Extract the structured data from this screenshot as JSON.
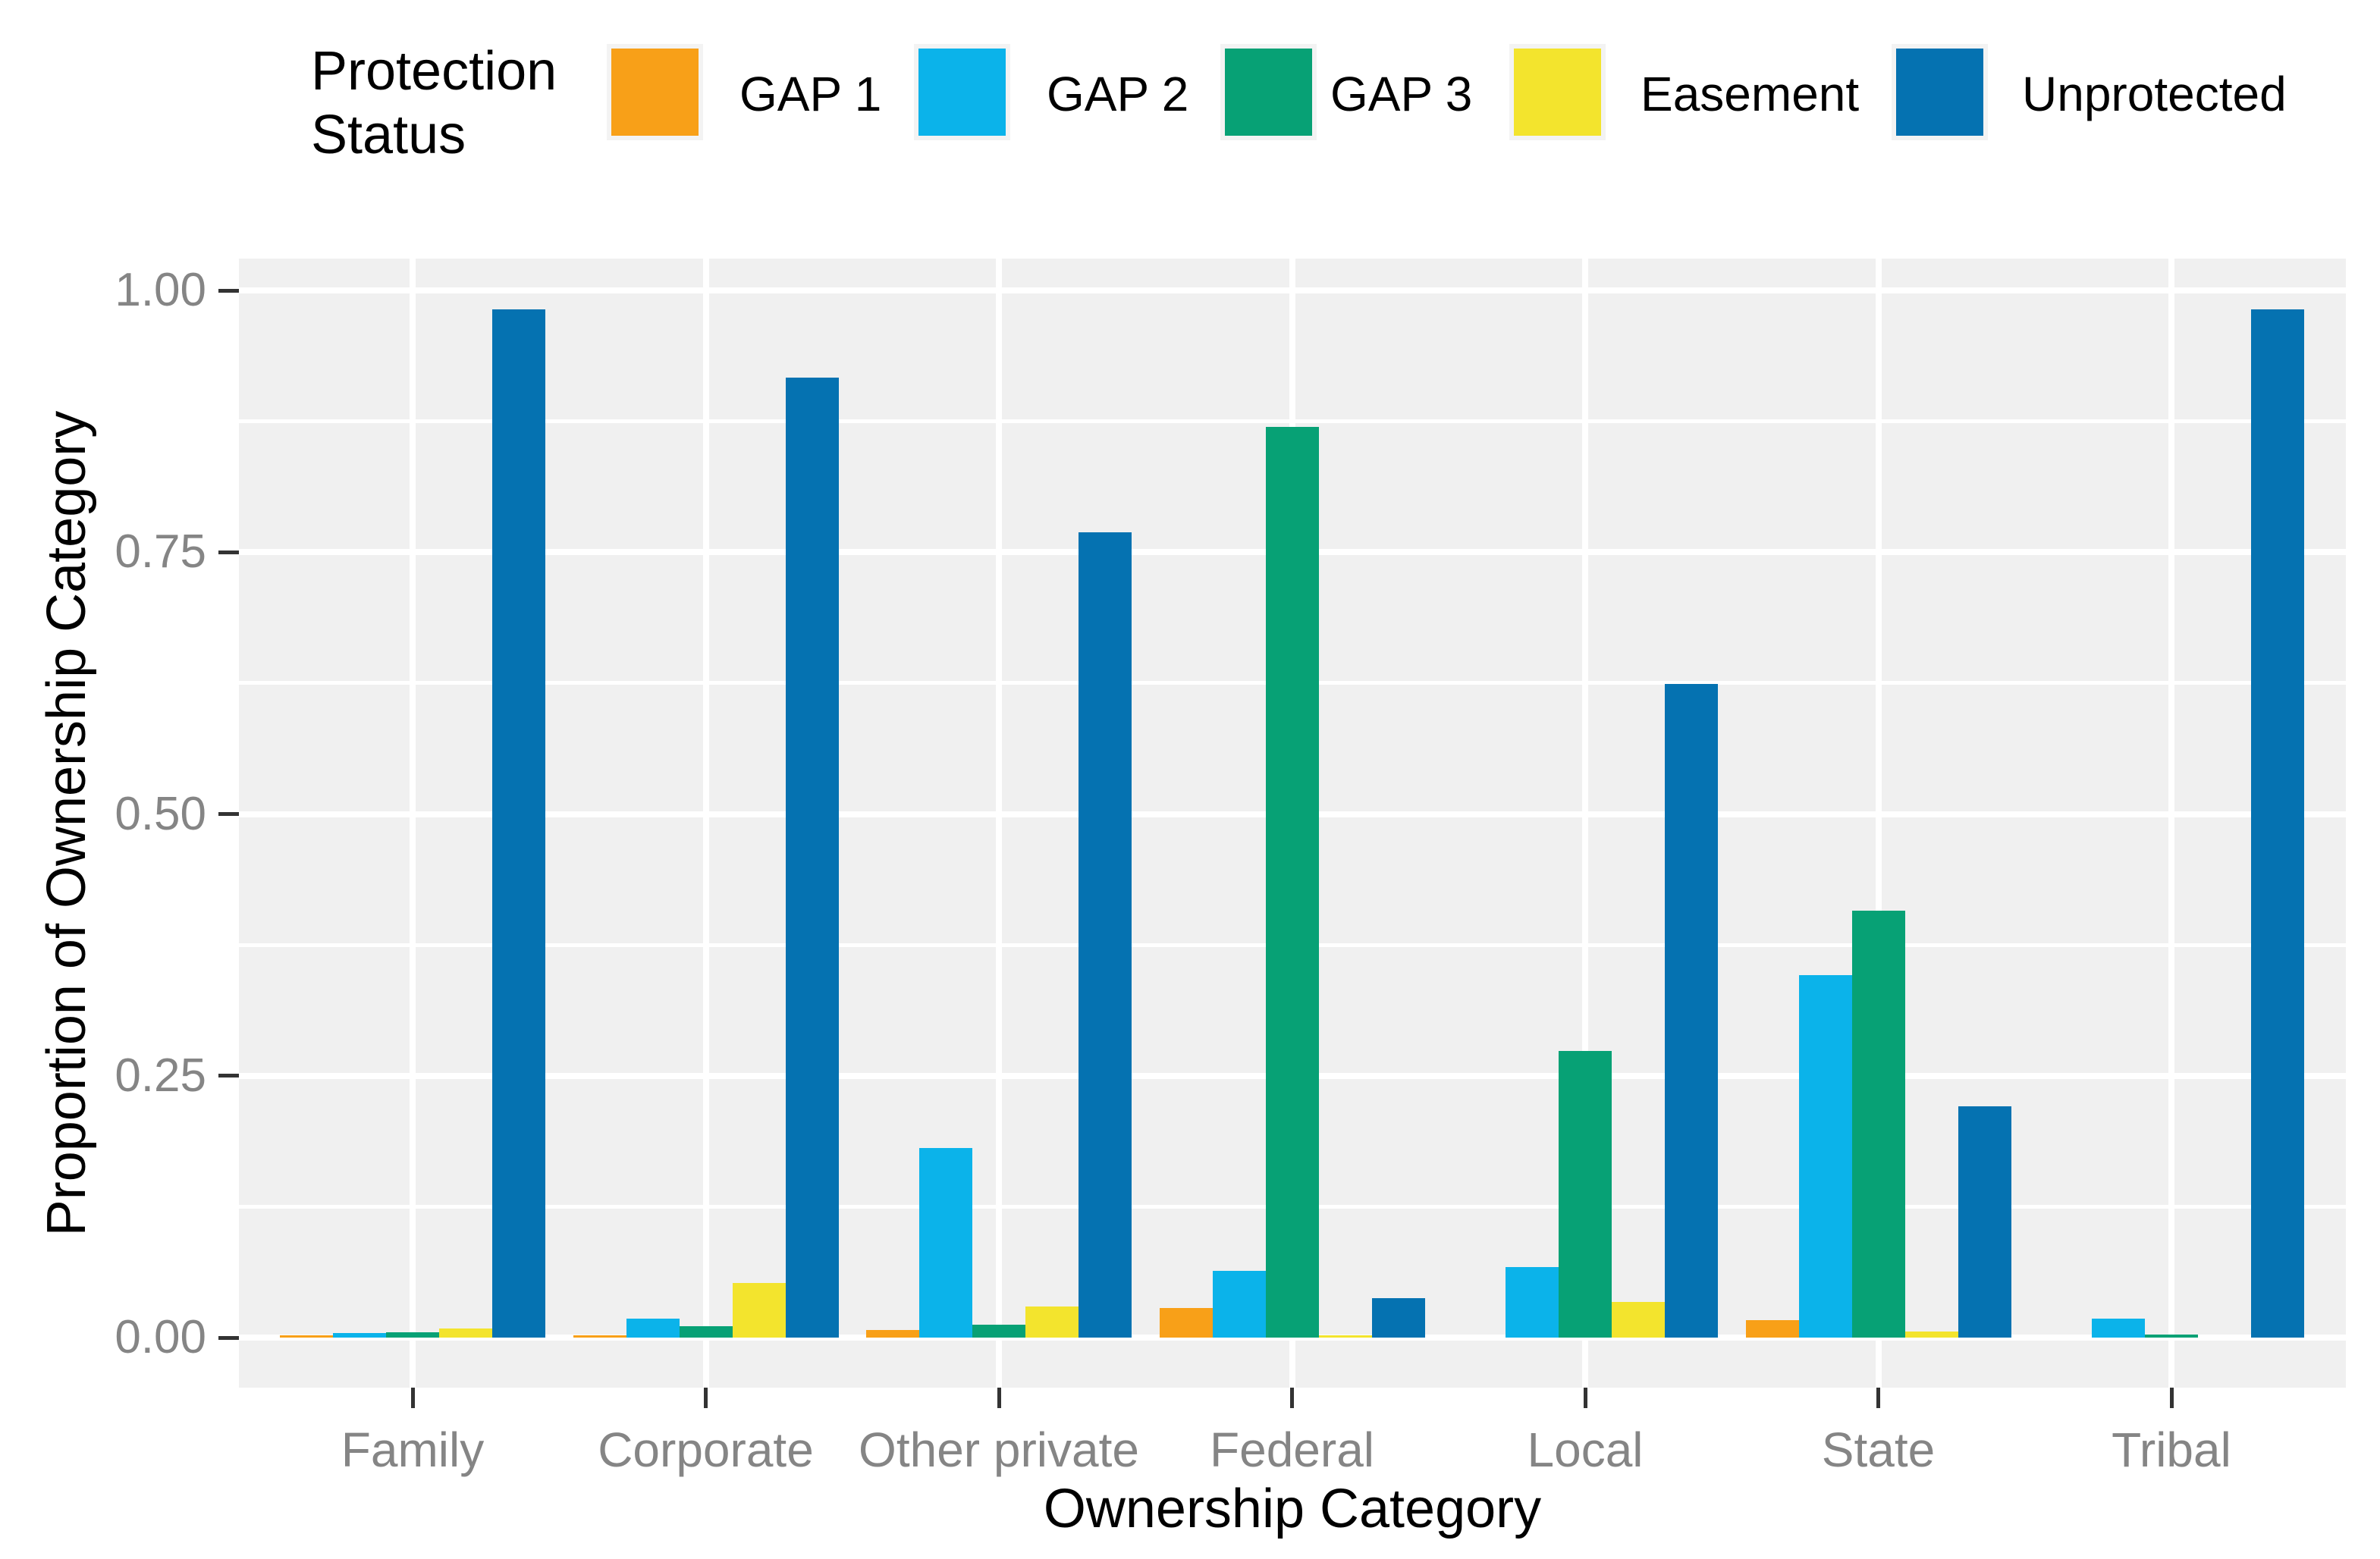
{
  "chart_data": {
    "type": "bar",
    "title": "",
    "xlabel": "Ownership Category",
    "ylabel": "Proportion of Ownership Category",
    "legend_title": "Protection Status",
    "legend_title_lines": [
      "Protection",
      "Status"
    ],
    "legend_position": "top",
    "grid": "white major and minor gridlines on light gray panel",
    "categories": [
      "Family",
      "Corporate",
      "Other private",
      "Federal",
      "Local",
      "State",
      "Tribal"
    ],
    "series": [
      {
        "name": "GAP 1",
        "color": "#F8A018",
        "values": [
          0.002,
          0.002,
          0.007,
          0.028,
          0.0,
          0.017,
          0.0
        ]
      },
      {
        "name": "GAP 2",
        "color": "#0BB3EA",
        "values": [
          0.004,
          0.018,
          0.181,
          0.064,
          0.067,
          0.346,
          0.018
        ]
      },
      {
        "name": "GAP 3",
        "color": "#07A175",
        "values": [
          0.005,
          0.011,
          0.012,
          0.87,
          0.274,
          0.408,
          0.003
        ]
      },
      {
        "name": "Easement",
        "color": "#F3E42D",
        "values": [
          0.009,
          0.052,
          0.03,
          0.002,
          0.034,
          0.006,
          0.0
        ]
      },
      {
        "name": "Unprotected",
        "color": "#0572B1",
        "values": [
          0.982,
          0.917,
          0.769,
          0.038,
          0.624,
          0.221,
          0.982
        ]
      }
    ],
    "ylim": [
      0,
      1
    ],
    "y_major_ticks": [
      0,
      0.25,
      0.5,
      0.75,
      1
    ],
    "y_tick_labels": [
      "0.00",
      "0.25",
      "0.50",
      "0.75",
      "1.00"
    ],
    "y_minor_ticks": [
      0.125,
      0.375,
      0.625,
      0.875
    ]
  },
  "style": {
    "panel_bg": "#F0F0F0",
    "gridline_color": "#FFFFFF",
    "tick_mark_color": "#333333",
    "tick_label_color": "#858585",
    "title_color": "#000000",
    "background": "#FFFFFF"
  }
}
